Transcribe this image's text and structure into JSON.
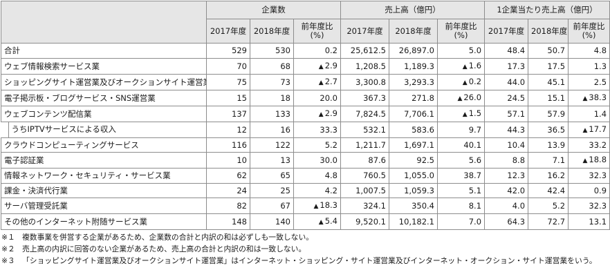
{
  "header": {
    "groups": [
      "企業数",
      "売上高（億円）",
      "1企業当たり売上高（億円）"
    ],
    "subcols": [
      "2017年度",
      "2018年度",
      "前年度比\n(%)"
    ]
  },
  "rows": [
    {
      "label": "合計",
      "vals": [
        "529",
        "530",
        "0.2",
        "25,612.5",
        "26,897.0",
        "5.0",
        "48.4",
        "50.7",
        "4.8"
      ]
    },
    {
      "label": "ウェブ情報検索サービス業",
      "vals": [
        "70",
        "68",
        "▲ 2.9",
        "1,208.5",
        "1,189.3",
        "▲ 1.6",
        "17.3",
        "17.5",
        "1.3"
      ]
    },
    {
      "label": "ショッピングサイト運営業及びオークションサイト運営業",
      "vals": [
        "75",
        "73",
        "▲ 2.7",
        "3,300.8",
        "3,293.3",
        "▲ 0.2",
        "44.0",
        "45.1",
        "2.5"
      ]
    },
    {
      "label": "電子掲示板・ブログサービス・SNS運営業",
      "vals": [
        "15",
        "18",
        "20.0",
        "367.3",
        "271.8",
        "▲ 26.0",
        "24.5",
        "15.1",
        "▲ 38.3"
      ]
    },
    {
      "label": "ウェブコンテンツ配信業",
      "vals": [
        "137",
        "133",
        "▲ 2.9",
        "7,824.5",
        "7,706.1",
        "▲ 1.5",
        "57.1",
        "57.9",
        "1.4"
      ]
    },
    {
      "label": "うちIPTVサービスによる収入",
      "sub": true,
      "vals": [
        "12",
        "16",
        "33.3",
        "532.1",
        "583.6",
        "9.7",
        "44.3",
        "36.5",
        "▲ 17.7"
      ]
    },
    {
      "label": "クラウドコンピューティングサービス",
      "vals": [
        "116",
        "122",
        "5.2",
        "1,211.7",
        "1,697.1",
        "40.1",
        "10.4",
        "13.9",
        "33.2"
      ]
    },
    {
      "label": "電子認証業",
      "vals": [
        "10",
        "13",
        "30.0",
        "87.6",
        "92.5",
        "5.6",
        "8.8",
        "7.1",
        "▲ 18.8"
      ]
    },
    {
      "label": "情報ネットワーク・セキュリティ・サービス業",
      "vals": [
        "62",
        "65",
        "4.8",
        "760.5",
        "1,055.0",
        "38.7",
        "12.3",
        "16.2",
        "32.3"
      ]
    },
    {
      "label": "課金・決済代行業",
      "vals": [
        "24",
        "25",
        "4.2",
        "1,007.5",
        "1,059.3",
        "5.1",
        "42.0",
        "42.4",
        "0.9"
      ]
    },
    {
      "label": "サーバ管理受託業",
      "vals": [
        "82",
        "67",
        "▲ 18.3",
        "324.1",
        "350.4",
        "8.1",
        "4.0",
        "5.2",
        "32.3"
      ]
    },
    {
      "label": "その他のインターネット附随サービス業",
      "vals": [
        "148",
        "140",
        "▲ 5.4",
        "9,520.1",
        "10,182.1",
        "7.0",
        "64.3",
        "72.7",
        "13.1"
      ]
    }
  ],
  "notes": [
    {
      "mark": "※１",
      "text": "複数事業を併営する企業があるため、企業数の合計と内訳の和は必ずしも一致しない。"
    },
    {
      "mark": "※２",
      "text": "売上高の内訳に回答のない企業があるため、売上高の合計と内訳の和は一致しない。"
    },
    {
      "mark": "※３",
      "text": "「ショッピングサイト運営業及びオークションサイト運営業」はインターネット・ショッピング・サイト運営業及びインターネット・オークション・サイト運営業をいう。"
    }
  ]
}
